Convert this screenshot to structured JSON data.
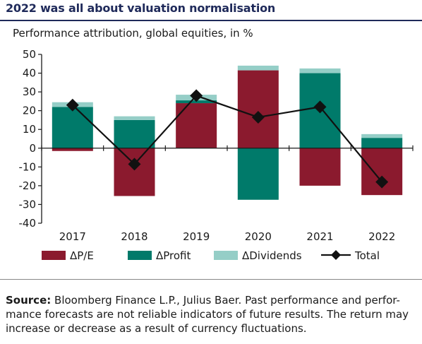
{
  "header": {
    "title": "2022 was all about valuation normalisation",
    "subtitle": "Performance attribution, global equities, in %"
  },
  "footer": {
    "source_label": "Source:",
    "source_text": "Bloomberg Finance L.P., Julius Baer. Past performance and perfor-mance forecasts are not reliable indicators of future results. The return may increase or decrease as a result of currency fluctuations."
  },
  "colors": {
    "pe": "#8b1a2e",
    "profit": "#007a6a",
    "dividends": "#95cec7",
    "total": "#111111",
    "title": "#1f2a5a"
  },
  "chart_data": {
    "type": "bar",
    "stacked": true,
    "categories": [
      "2017",
      "2018",
      "2019",
      "2020",
      "2021",
      "2022"
    ],
    "ylim": [
      -40,
      50
    ],
    "yticks": [
      50,
      40,
      30,
      20,
      10,
      0,
      -10,
      -20,
      -30,
      -40
    ],
    "series": [
      {
        "name": "ΔP/E",
        "type": "bar",
        "values": [
          -1.5,
          -25.5,
          24,
          41.5,
          -20,
          -25
        ]
      },
      {
        "name": "ΔProfit",
        "type": "bar",
        "values": [
          22,
          15,
          1.5,
          -27.5,
          40,
          5.5
        ]
      },
      {
        "name": "ΔDividends",
        "type": "bar",
        "values": [
          2.5,
          2,
          3,
          2.5,
          2.5,
          2
        ]
      },
      {
        "name": "Total",
        "type": "line",
        "values": [
          23,
          -8.5,
          28,
          16.5,
          22,
          -18
        ]
      }
    ],
    "legend_position": "bottom",
    "grid": false
  }
}
